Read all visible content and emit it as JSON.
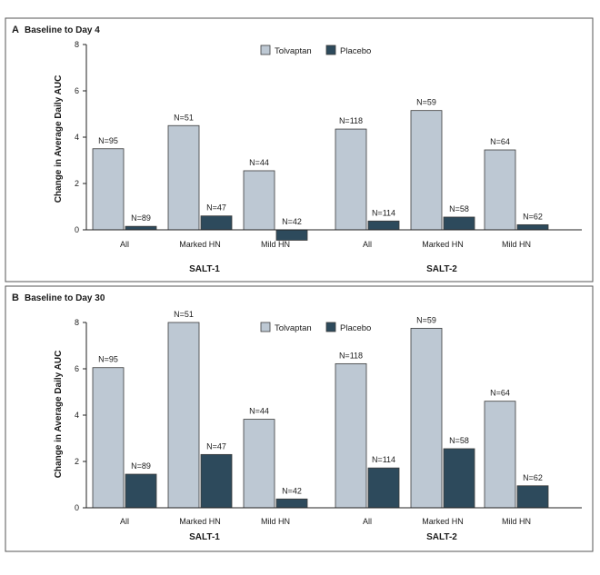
{
  "colors": {
    "tolvaptan": "#bdc8d3",
    "placebo": "#2d4a5c",
    "bar_stroke": "#3a3a3a"
  },
  "chart_data": [
    {
      "type": "bar",
      "panel": "A",
      "title": "Baseline to Day 4",
      "ylabel": "Change in Average Daily AUC",
      "ylim": [
        -1,
        8
      ],
      "yticks": [
        0,
        2,
        4,
        6,
        8
      ],
      "legend": [
        "Tolvaptan",
        "Placebo"
      ],
      "groups": [
        "SALT-1",
        "SALT-2"
      ],
      "categories": [
        "All",
        "Marked HN",
        "Mild HN",
        "All",
        "Marked HN",
        "Mild HN"
      ],
      "series": [
        {
          "name": "Tolvaptan",
          "values": [
            3.5,
            4.5,
            2.55,
            4.35,
            5.15,
            3.45
          ],
          "n_labels": [
            "N=95",
            "N=51",
            "N=44",
            "N=118",
            "N=59",
            "N=64"
          ]
        },
        {
          "name": "Placebo",
          "values": [
            0.15,
            0.6,
            -0.45,
            0.38,
            0.55,
            0.22
          ],
          "n_labels": [
            "N=89",
            "N=47",
            "N=42",
            "N=114",
            "N=58",
            "N=62"
          ]
        }
      ]
    },
    {
      "type": "bar",
      "panel": "B",
      "title": "Baseline to Day 30",
      "ylabel": "Change in Average Daily AUC",
      "ylim": [
        0,
        8
      ],
      "yticks": [
        0,
        2,
        4,
        6,
        8
      ],
      "legend": [
        "Tolvaptan",
        "Placebo"
      ],
      "groups": [
        "SALT-1",
        "SALT-2"
      ],
      "categories": [
        "All",
        "Marked HN",
        "Mild HN",
        "All",
        "Marked HN",
        "Mild HN"
      ],
      "series": [
        {
          "name": "Tolvaptan",
          "values": [
            6.05,
            8.0,
            3.82,
            6.22,
            7.75,
            4.6
          ],
          "n_labels": [
            "N=95",
            "N=51",
            "N=44",
            "N=118",
            "N=59",
            "N=64"
          ]
        },
        {
          "name": "Placebo",
          "values": [
            1.45,
            2.3,
            0.38,
            1.72,
            2.55,
            0.95
          ],
          "n_labels": [
            "N=89",
            "N=47",
            "N=42",
            "N=114",
            "N=58",
            "N=62"
          ]
        }
      ]
    }
  ]
}
